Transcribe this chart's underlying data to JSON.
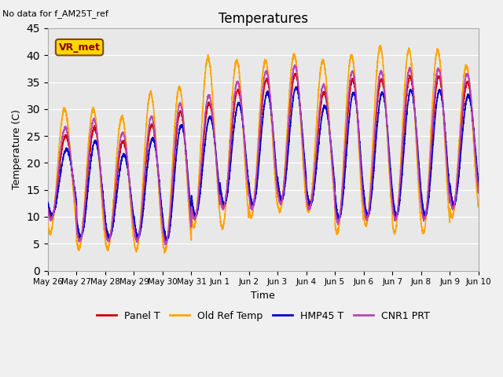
{
  "title": "Temperatures",
  "note_text": "No data for f_AM25T_ref",
  "annotation_text": "VR_met",
  "ylabel": "Temperature (C)",
  "xlabel": "Time",
  "ylim": [
    0,
    45
  ],
  "yticks": [
    0,
    5,
    10,
    15,
    20,
    25,
    30,
    35,
    40,
    45
  ],
  "background_color": "#e8e8e8",
  "fig_facecolor": "#f0f0f0",
  "series": {
    "Panel T": {
      "color": "#cc0000",
      "lw": 1.2
    },
    "Old Ref Temp": {
      "color": "#ffa500",
      "lw": 1.2
    },
    "HMP45 T": {
      "color": "#0000cc",
      "lw": 1.2
    },
    "CNR1 PRT": {
      "color": "#bb44bb",
      "lw": 1.2
    }
  },
  "x_tick_labels": [
    "May 26",
    "May 27",
    "May 28",
    "May 29",
    "May 30",
    "May 31",
    "Jun 1",
    "Jun 2",
    "Jun 3",
    "Jun 4",
    "Jun 5",
    "Jun 6",
    "Jun 7",
    "Jun 8",
    "Jun 9",
    "Jun 10"
  ],
  "n_days": 15,
  "day_data": [
    {
      "orange_min": 7.0,
      "orange_max": 30.0,
      "cluster_min": 10.0,
      "cluster_max": 25.0
    },
    {
      "orange_min": 4.0,
      "orange_max": 30.0,
      "cluster_min": 6.0,
      "cluster_max": 26.5
    },
    {
      "orange_min": 4.0,
      "orange_max": 28.5,
      "cluster_min": 6.0,
      "cluster_max": 24.0
    },
    {
      "orange_min": 3.8,
      "orange_max": 33.0,
      "cluster_min": 6.0,
      "cluster_max": 27.0
    },
    {
      "orange_min": 3.8,
      "orange_max": 34.0,
      "cluster_min": 5.5,
      "cluster_max": 29.5
    },
    {
      "orange_min": 8.0,
      "orange_max": 39.5,
      "cluster_min": 10.0,
      "cluster_max": 31.0
    },
    {
      "orange_min": 8.0,
      "orange_max": 39.0,
      "cluster_min": 12.0,
      "cluster_max": 33.5
    },
    {
      "orange_min": 10.0,
      "orange_max": 39.0,
      "cluster_min": 12.0,
      "cluster_max": 35.5
    },
    {
      "orange_min": 11.0,
      "orange_max": 40.0,
      "cluster_min": 13.0,
      "cluster_max": 36.5
    },
    {
      "orange_min": 11.0,
      "orange_max": 39.0,
      "cluster_min": 12.0,
      "cluster_max": 33.0
    },
    {
      "orange_min": 7.0,
      "orange_max": 40.0,
      "cluster_min": 9.5,
      "cluster_max": 35.5
    },
    {
      "orange_min": 8.5,
      "orange_max": 41.5,
      "cluster_min": 10.0,
      "cluster_max": 35.5
    },
    {
      "orange_min": 7.0,
      "orange_max": 41.0,
      "cluster_min": 10.0,
      "cluster_max": 36.0
    },
    {
      "orange_min": 7.0,
      "orange_max": 41.0,
      "cluster_min": 10.0,
      "cluster_max": 36.0
    },
    {
      "orange_min": 10.0,
      "orange_max": 38.0,
      "cluster_min": 12.0,
      "cluster_max": 35.0
    }
  ]
}
